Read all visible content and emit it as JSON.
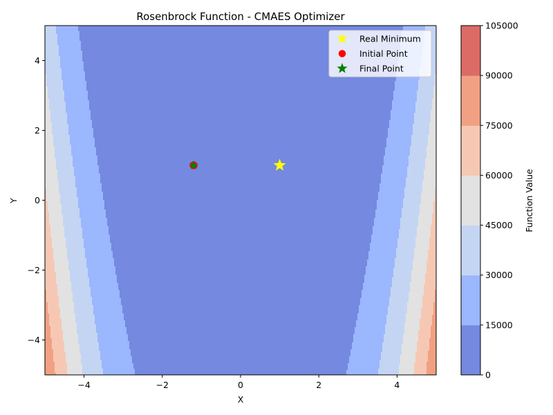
{
  "chart_data": {
    "type": "contour",
    "title": "Rosenbrock Function - CMAES Optimizer",
    "xlabel": "X",
    "ylabel": "Y",
    "xlim": [
      -5,
      5
    ],
    "ylim": [
      -5,
      5
    ],
    "x_ticks": [
      -4,
      -2,
      0,
      2,
      4
    ],
    "y_ticks": [
      -4,
      -2,
      0,
      2,
      4
    ],
    "x_tick_labels": [
      "−4",
      "−2",
      "0",
      "2",
      "4"
    ],
    "y_tick_labels": [
      "−4",
      "−2",
      "0",
      "2",
      "4"
    ],
    "contour_levels": [
      0,
      15000,
      30000,
      45000,
      60000,
      75000,
      90000,
      105000
    ],
    "level_colors": [
      "#7489df",
      "#9bb7fd",
      "#c4d5f3",
      "#e2e2e2",
      "#f6c8b4",
      "#f2a083",
      "#dc6b66"
    ],
    "colorbar": {
      "label": "Function Value",
      "ticks": [
        0,
        15000,
        30000,
        45000,
        60000,
        75000,
        90000,
        105000
      ],
      "tick_labels": [
        "0",
        "15000",
        "30000",
        "45000",
        "60000",
        "75000",
        "90000",
        "105000"
      ]
    },
    "points": [
      {
        "name": "Real Minimum",
        "x": 1.0,
        "y": 1.0,
        "marker": "star",
        "color": "#ffff00"
      },
      {
        "name": "Initial Point",
        "x": -1.2,
        "y": 1.0,
        "marker": "circle",
        "color": "#ff0000"
      },
      {
        "name": "Final Point",
        "x": -1.2,
        "y": 1.0,
        "marker": "star",
        "color": "#008000"
      }
    ],
    "legend_position": "upper-right",
    "grid": false
  }
}
